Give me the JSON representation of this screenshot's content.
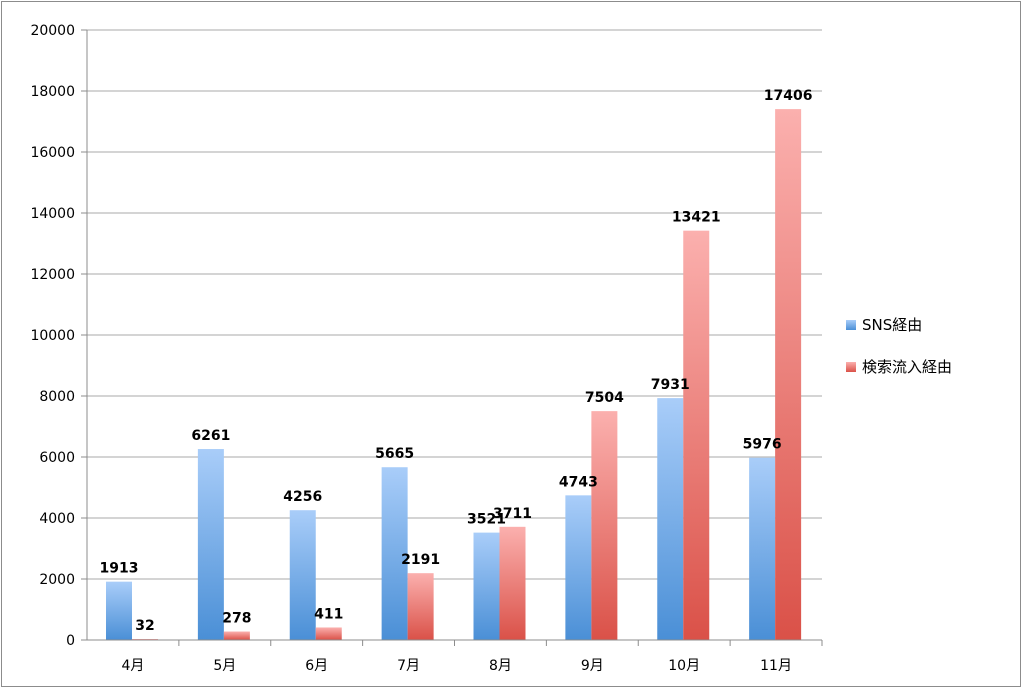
{
  "chart_data": {
    "type": "bar",
    "categories": [
      "4月",
      "5月",
      "6月",
      "7月",
      "8月",
      "9月",
      "10月",
      "11月"
    ],
    "series": [
      {
        "name": "SNS経由",
        "values": [
          1913,
          6261,
          4256,
          5665,
          3521,
          4743,
          7931,
          5976
        ],
        "color_top": "#a9cdf9",
        "color_bottom": "#4a8fd6"
      },
      {
        "name": "検索流入経由",
        "values": [
          32,
          278,
          411,
          2191,
          3711,
          7504,
          13421,
          17406
        ],
        "color_top": "#fbb0ae",
        "color_bottom": "#da5148"
      }
    ],
    "ylim": [
      0,
      20000
    ],
    "yticks": [
      0,
      2000,
      4000,
      6000,
      8000,
      10000,
      12000,
      14000,
      16000,
      18000,
      20000
    ],
    "grid": true,
    "legend_position": "right",
    "title": "",
    "xlabel": "",
    "ylabel": ""
  }
}
